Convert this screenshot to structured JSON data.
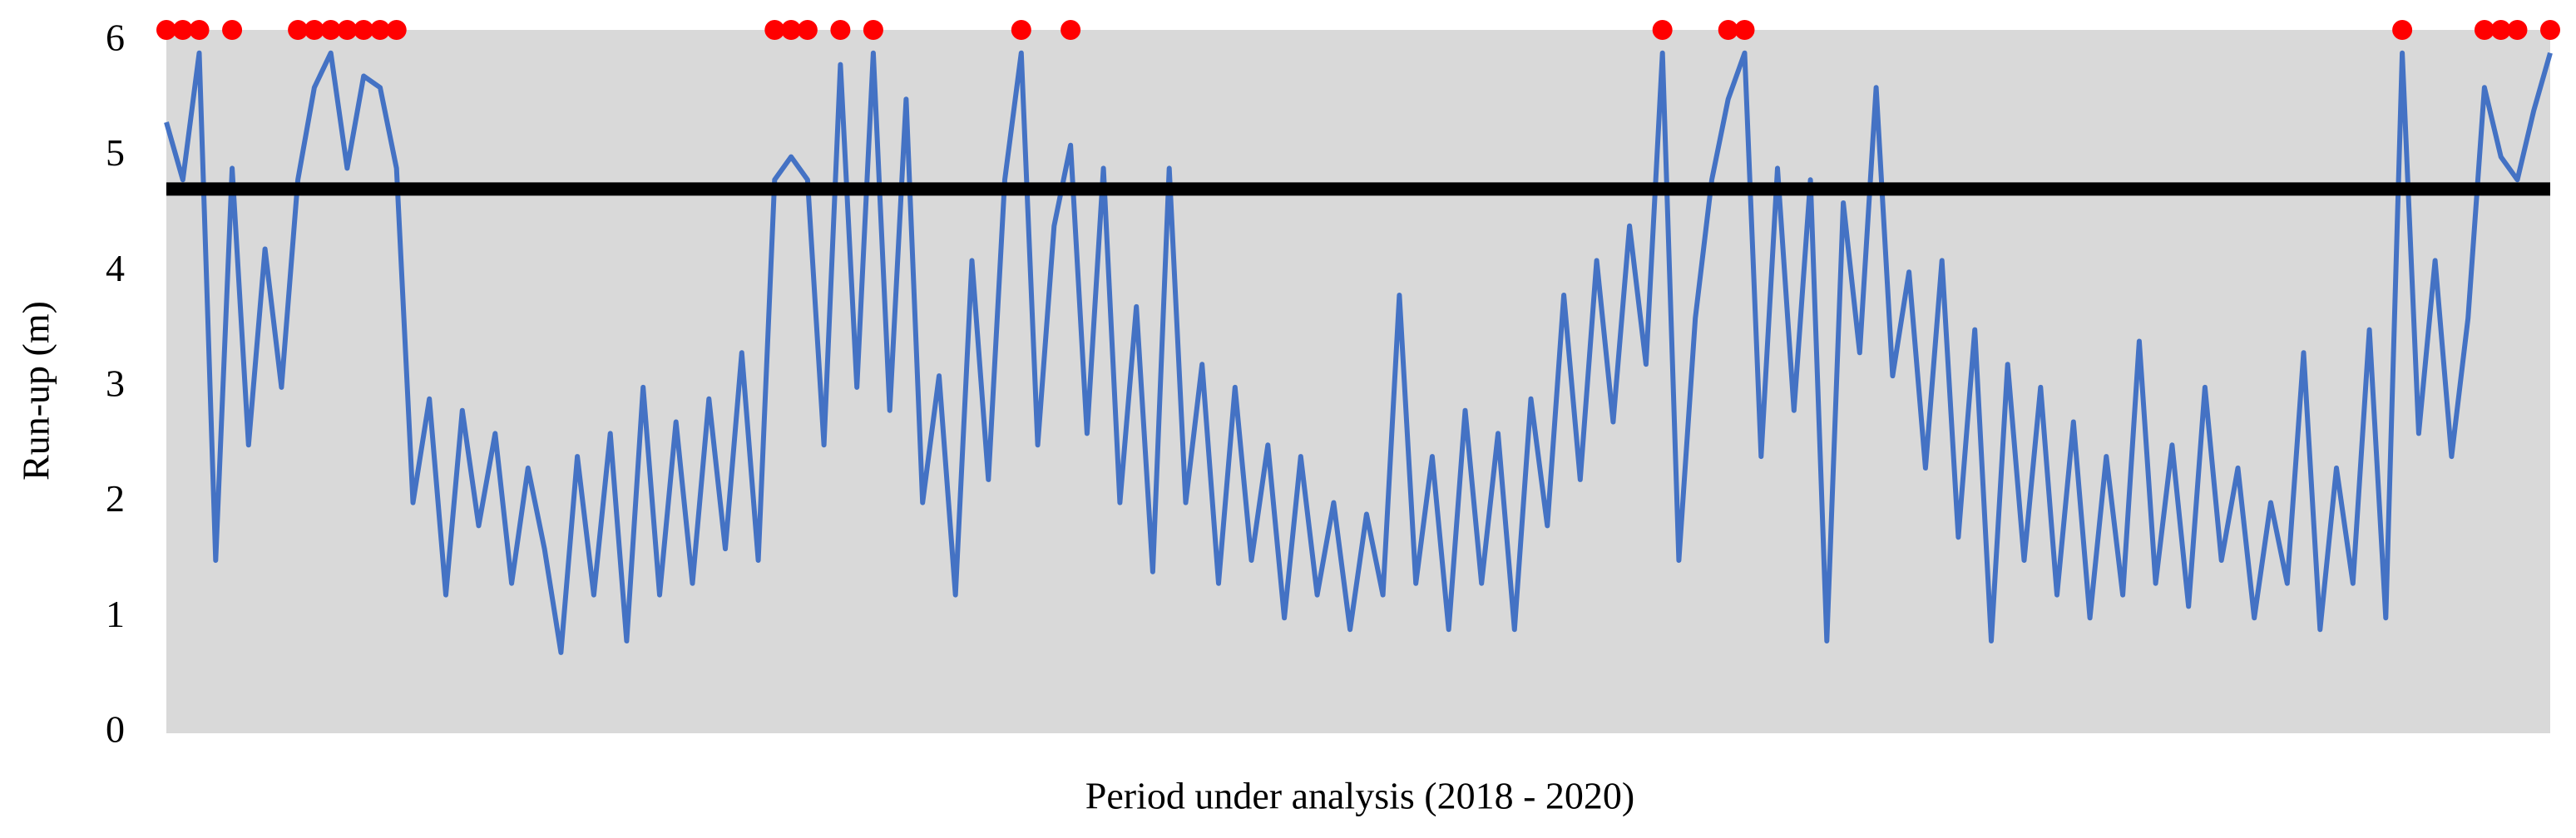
{
  "chart_data": {
    "type": "line",
    "x_label": "Period under analysis (2018 - 2020)",
    "y_label": "Run-up (m)",
    "ylim": [
      0,
      6.1
    ],
    "yticks": [
      0,
      1,
      2,
      3,
      4,
      5,
      6
    ],
    "grid": false,
    "background": "#d9d9d9",
    "threshold": {
      "value": 4.72,
      "color": "#000000"
    },
    "series": [
      {
        "color": "#4472c4",
        "values": [
          5.3,
          4.8,
          5.9,
          1.5,
          4.9,
          2.5,
          4.2,
          3.0,
          4.8,
          5.6,
          5.9,
          4.9,
          5.7,
          5.6,
          4.9,
          2.0,
          2.9,
          1.2,
          2.8,
          1.8,
          2.6,
          1.3,
          2.3,
          1.6,
          0.7,
          2.4,
          1.2,
          2.6,
          0.8,
          3.0,
          1.2,
          2.7,
          1.3,
          2.9,
          1.6,
          3.3,
          1.5,
          4.8,
          5.0,
          4.8,
          2.5,
          5.8,
          3.0,
          5.9,
          2.8,
          5.5,
          2.0,
          3.1,
          1.2,
          4.1,
          2.2,
          4.8,
          5.9,
          2.5,
          4.4,
          5.1,
          2.6,
          4.9,
          2.0,
          3.7,
          1.4,
          4.9,
          2.0,
          3.2,
          1.3,
          3.0,
          1.5,
          2.5,
          1.0,
          2.4,
          1.2,
          2.0,
          0.9,
          1.9,
          1.2,
          3.8,
          1.3,
          2.4,
          0.9,
          2.8,
          1.3,
          2.6,
          0.9,
          2.9,
          1.8,
          3.8,
          2.2,
          4.1,
          2.7,
          4.4,
          3.2,
          5.9,
          1.5,
          3.6,
          4.8,
          5.5,
          5.9,
          2.4,
          4.9,
          2.8,
          4.8,
          0.8,
          4.6,
          3.3,
          5.6,
          3.1,
          4.0,
          2.3,
          4.1,
          1.7,
          3.5,
          0.8,
          3.2,
          1.5,
          3.0,
          1.2,
          2.7,
          1.0,
          2.4,
          1.2,
          3.4,
          1.3,
          2.5,
          1.1,
          3.0,
          1.5,
          2.3,
          1.0,
          2.0,
          1.3,
          3.3,
          0.9,
          2.3,
          1.3,
          3.5,
          1.0,
          5.9,
          2.6,
          4.1,
          2.4,
          3.6,
          5.6,
          5.0,
          4.8,
          5.4,
          5.9
        ]
      },
      {
        "color": "#ff0000",
        "markers_only": true,
        "values": [
          6.1,
          6.1,
          6.1,
          null,
          6.1,
          null,
          null,
          null,
          6.1,
          6.1,
          6.1,
          6.1,
          6.1,
          6.1,
          6.1,
          null,
          null,
          null,
          null,
          null,
          null,
          null,
          null,
          null,
          null,
          null,
          null,
          null,
          null,
          null,
          null,
          null,
          null,
          null,
          null,
          null,
          null,
          6.1,
          6.1,
          6.1,
          null,
          6.1,
          null,
          6.1,
          null,
          null,
          null,
          null,
          null,
          null,
          null,
          null,
          6.1,
          null,
          null,
          6.1,
          null,
          null,
          null,
          null,
          null,
          null,
          null,
          null,
          null,
          null,
          null,
          null,
          null,
          null,
          null,
          null,
          null,
          null,
          null,
          null,
          null,
          null,
          null,
          null,
          null,
          null,
          null,
          null,
          null,
          null,
          null,
          null,
          null,
          null,
          null,
          6.1,
          null,
          null,
          null,
          6.1,
          6.1,
          null,
          null,
          null,
          null,
          null,
          null,
          null,
          null,
          null,
          null,
          null,
          null,
          null,
          null,
          null,
          null,
          null,
          null,
          null,
          null,
          null,
          null,
          null,
          null,
          null,
          null,
          null,
          null,
          null,
          null,
          null,
          null,
          null,
          null,
          null,
          null,
          null,
          null,
          null,
          6.1,
          null,
          null,
          null,
          null,
          6.1,
          6.1,
          6.1,
          null,
          6.1
        ]
      }
    ]
  }
}
